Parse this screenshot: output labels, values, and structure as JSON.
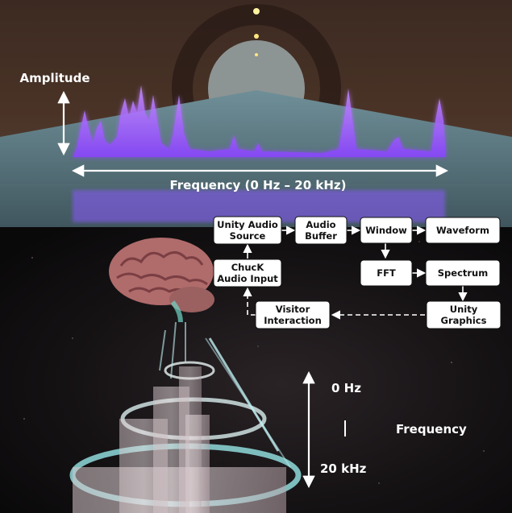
{
  "top_panel": {
    "amplitude_label": "Amplitude",
    "frequency_label": "Frequency (0 Hz – 20 kHz)"
  },
  "bottom_panel": {
    "freq_top_label": "0 Hz",
    "freq_bottom_label": "20 kHz",
    "frequency_label": "Frequency"
  },
  "flowchart": {
    "nodes": {
      "unity_audio_source": [
        "Unity Audio",
        "Source"
      ],
      "audio_buffer": [
        "Audio",
        "Buffer"
      ],
      "window": [
        "Window"
      ],
      "waveform": [
        "Waveform"
      ],
      "chuck_audio_input": [
        "ChucK",
        "Audio Input"
      ],
      "fft": [
        "FFT"
      ],
      "spectrum": [
        "Spectrum"
      ],
      "visitor_interaction": [
        "Visitor",
        "Interaction"
      ],
      "unity_graphics": [
        "Unity",
        "Graphics"
      ]
    }
  },
  "colors": {
    "spectrum_glow": "#a05cff",
    "box_fill": "#ffffff",
    "spiral_cyan": "#8ad8d8",
    "sky_top": "#3a2a24"
  }
}
